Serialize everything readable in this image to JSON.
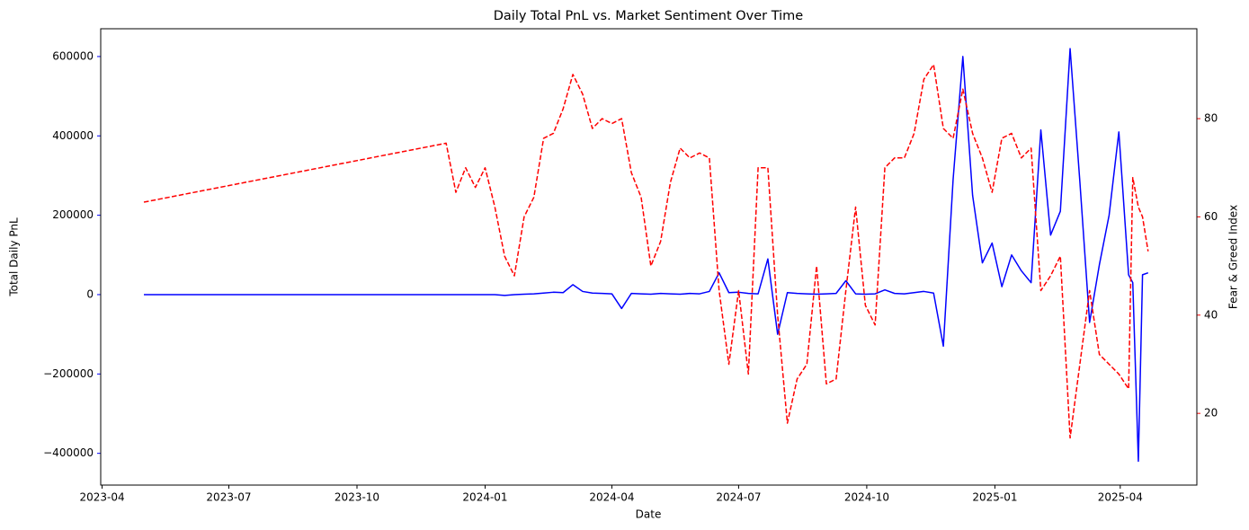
{
  "chart_data": {
    "type": "line",
    "title": "Daily Total PnL vs. Market Sentiment Over Time",
    "x_label": "Date",
    "y_label": "Total Daily PnL",
    "y2_label": "Fear & Greed Index",
    "y_color": "#0000ff",
    "y2_color": "#ff0000",
    "x": [
      "2023-05-01",
      "2023-12-04",
      "2023-12-11",
      "2023-12-18",
      "2023-12-25",
      "2024-01-01",
      "2024-01-08",
      "2024-01-15",
      "2024-01-22",
      "2024-01-29",
      "2024-02-05",
      "2024-02-12",
      "2024-02-19",
      "2024-02-26",
      "2024-03-04",
      "2024-03-11",
      "2024-03-18",
      "2024-03-25",
      "2024-04-01",
      "2024-04-08",
      "2024-04-15",
      "2024-04-22",
      "2024-04-29",
      "2024-05-06",
      "2024-05-13",
      "2024-05-20",
      "2024-05-27",
      "2024-06-03",
      "2024-06-10",
      "2024-06-17",
      "2024-06-24",
      "2024-07-01",
      "2024-07-08",
      "2024-07-15",
      "2024-07-22",
      "2024-07-29",
      "2024-08-05",
      "2024-08-12",
      "2024-08-19",
      "2024-08-26",
      "2024-09-02",
      "2024-09-09",
      "2024-09-16",
      "2024-09-23",
      "2024-09-30",
      "2024-10-07",
      "2024-10-14",
      "2024-10-21",
      "2024-10-28",
      "2024-11-04",
      "2024-11-11",
      "2024-11-18",
      "2024-11-25",
      "2024-12-02",
      "2024-12-09",
      "2024-12-16",
      "2024-12-23",
      "2024-12-30",
      "2025-01-06",
      "2025-01-13",
      "2025-01-20",
      "2025-01-27",
      "2025-02-03",
      "2025-02-10",
      "2025-02-17",
      "2025-02-24",
      "2025-03-03",
      "2025-03-10",
      "2025-03-17",
      "2025-03-24",
      "2025-03-31",
      "2025-04-07",
      "2025-04-10",
      "2025-04-14",
      "2025-04-17",
      "2025-04-21"
    ],
    "series": [
      {
        "color": "#0000ff",
        "axis": "y",
        "linestyle": "solid",
        "values": [
          0,
          0,
          0,
          0,
          0,
          0,
          0,
          -2000,
          0,
          1000,
          2000,
          4000,
          6000,
          5000,
          25000,
          8000,
          4000,
          3000,
          2000,
          -35000,
          3000,
          2000,
          1000,
          3000,
          2000,
          1000,
          3000,
          2000,
          8000,
          55000,
          5000,
          6000,
          3000,
          2000,
          90000,
          -100000,
          5000,
          3000,
          2000,
          1000,
          2000,
          3000,
          35000,
          2000,
          1000,
          2000,
          12000,
          3000,
          2000,
          5000,
          8000,
          4000,
          -130000,
          290000,
          600000,
          250000,
          80000,
          130000,
          20000,
          100000,
          60000,
          30000,
          415000,
          150000,
          210000,
          620000,
          285000,
          -70000,
          75000,
          200000,
          410000,
          50000,
          30000,
          -420000,
          50000,
          55000
        ]
      },
      {
        "color": "#ff0000",
        "axis": "y2",
        "linestyle": "dashed",
        "values": [
          63,
          75,
          65,
          70,
          66,
          70,
          62,
          52,
          48,
          60,
          64,
          76,
          77,
          82,
          89,
          85,
          78,
          80,
          79,
          80,
          69,
          64,
          50,
          55,
          67,
          74,
          72,
          73,
          72,
          45,
          30,
          45,
          28,
          70,
          70,
          40,
          18,
          27,
          30,
          50,
          26,
          27,
          45,
          62,
          42,
          38,
          70,
          72,
          72,
          77,
          88,
          91,
          78,
          76,
          86,
          77,
          72,
          65,
          76,
          77,
          72,
          74,
          45,
          48,
          52,
          15,
          30,
          45,
          32,
          30,
          28,
          25,
          68,
          62,
          60,
          53
        ]
      }
    ],
    "xlim": [
      "2023-03-31",
      "2025-05-26"
    ],
    "xticks": [
      {
        "value": "2023-04-01",
        "label": "2023-04"
      },
      {
        "value": "2023-07-01",
        "label": "2023-07"
      },
      {
        "value": "2023-10-01",
        "label": "2023-10"
      },
      {
        "value": "2024-01-01",
        "label": "2024-01"
      },
      {
        "value": "2024-04-01",
        "label": "2024-04"
      },
      {
        "value": "2024-07-01",
        "label": "2024-07"
      },
      {
        "value": "2024-10-01",
        "label": "2024-10"
      },
      {
        "value": "2025-01-01",
        "label": "2025-01"
      },
      {
        "value": "2025-04-01",
        "label": "2025-04"
      }
    ],
    "ylim": [
      -480000,
      670000
    ],
    "yticks": [
      {
        "value": -400000,
        "label": "−400000"
      },
      {
        "value": -200000,
        "label": "−200000"
      },
      0,
      200000,
      400000,
      600000
    ],
    "y2lim": [
      5.4,
      98.3
    ],
    "y2ticks": [
      20,
      40,
      60,
      80
    ],
    "grid": false
  }
}
